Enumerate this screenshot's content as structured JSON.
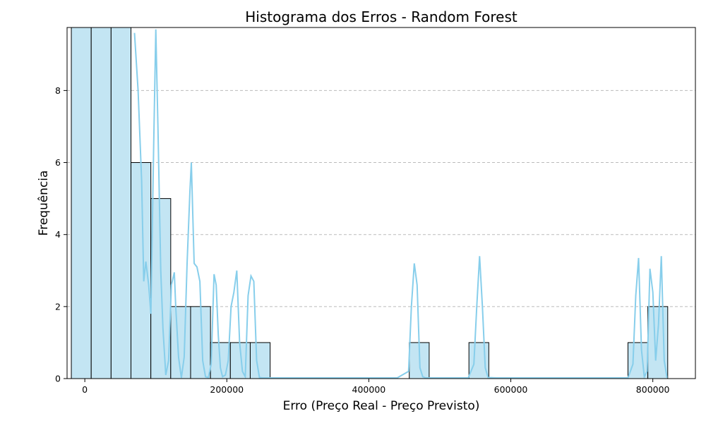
{
  "chart_data": {
    "type": "bar",
    "title": "Histograma dos Erros - Random Forest",
    "xlabel": "Erro (Preço Real - Preço Previsto)",
    "ylabel": "Frequência",
    "xlim": [
      -25000,
      860000
    ],
    "ylim": [
      0,
      9.75
    ],
    "xticks": [
      0,
      200000,
      400000,
      600000,
      800000
    ],
    "xtick_labels": [
      "0",
      "200000",
      "400000",
      "600000",
      "800000"
    ],
    "yticks": [
      0,
      2,
      4,
      6,
      8
    ],
    "ytick_labels": [
      "0",
      "2",
      "4",
      "6",
      "8"
    ],
    "grid": "y",
    "bin_width": 28000,
    "bins": [
      {
        "start": -19000,
        "count": 10
      },
      {
        "start": 9000,
        "count": 10
      },
      {
        "start": 37000,
        "count": 10
      },
      {
        "start": 65000,
        "count": 6
      },
      {
        "start": 93000,
        "count": 5
      },
      {
        "start": 121000,
        "count": 2
      },
      {
        "start": 149000,
        "count": 2
      },
      {
        "start": 177000,
        "count": 1
      },
      {
        "start": 205000,
        "count": 1
      },
      {
        "start": 233000,
        "count": 1
      },
      {
        "start": 457000,
        "count": 1
      },
      {
        "start": 541000,
        "count": 1
      },
      {
        "start": 765000,
        "count": 1
      },
      {
        "start": 793000,
        "count": 2
      }
    ],
    "kde": {
      "x": [
        70000,
        75000,
        80000,
        83000,
        86000,
        90000,
        93000,
        97000,
        100000,
        103000,
        107000,
        110000,
        114000,
        118000,
        122000,
        126000,
        128000,
        132000,
        136000,
        140000,
        144000,
        148000,
        150000,
        154000,
        158000,
        162000,
        166000,
        170000,
        174000,
        178000,
        182000,
        185000,
        188000,
        191000,
        194000,
        198000,
        202000,
        206000,
        210000,
        214000,
        218000,
        222000,
        226000,
        230000,
        234000,
        238000,
        242000,
        246000,
        250000,
        254000,
        258000,
        266000,
        280000,
        300000,
        350000,
        400000,
        440000,
        456000,
        460000,
        464000,
        468000,
        472000,
        476000,
        480000,
        484000,
        500000,
        540000,
        548000,
        552000,
        556000,
        560000,
        564000,
        568000,
        580000,
        650000,
        720000,
        765000,
        772000,
        776000,
        780000,
        784000,
        788000,
        792000,
        796000,
        800000,
        804000,
        808000,
        812000,
        816000,
        820000
      ],
      "y": [
        9.6,
        8.0,
        5.5,
        2.7,
        3.25,
        2.6,
        1.8,
        6.5,
        9.7,
        7.0,
        3.0,
        1.4,
        0.1,
        0.5,
        2.6,
        2.95,
        2.0,
        0.6,
        0.02,
        0.6,
        3.2,
        5.2,
        6.0,
        3.2,
        3.1,
        2.7,
        0.5,
        0.05,
        0.03,
        0.4,
        2.9,
        2.6,
        1.2,
        0.3,
        0.05,
        0.1,
        0.5,
        2.0,
        2.4,
        3.0,
        1.0,
        0.2,
        0.05,
        2.3,
        2.85,
        2.7,
        0.5,
        0.03,
        0.02,
        0.02,
        0.02,
        0.02,
        0.02,
        0.02,
        0.02,
        0.02,
        0.02,
        0.2,
        2.0,
        3.2,
        2.6,
        0.3,
        0.05,
        0.02,
        0.02,
        0.02,
        0.02,
        0.4,
        2.0,
        3.4,
        2.0,
        0.3,
        0.03,
        0.02,
        0.02,
        0.02,
        0.02,
        0.4,
        2.3,
        3.35,
        0.8,
        0.05,
        0.2,
        3.05,
        2.4,
        0.5,
        1.5,
        3.4,
        0.5,
        0.02
      ]
    }
  }
}
